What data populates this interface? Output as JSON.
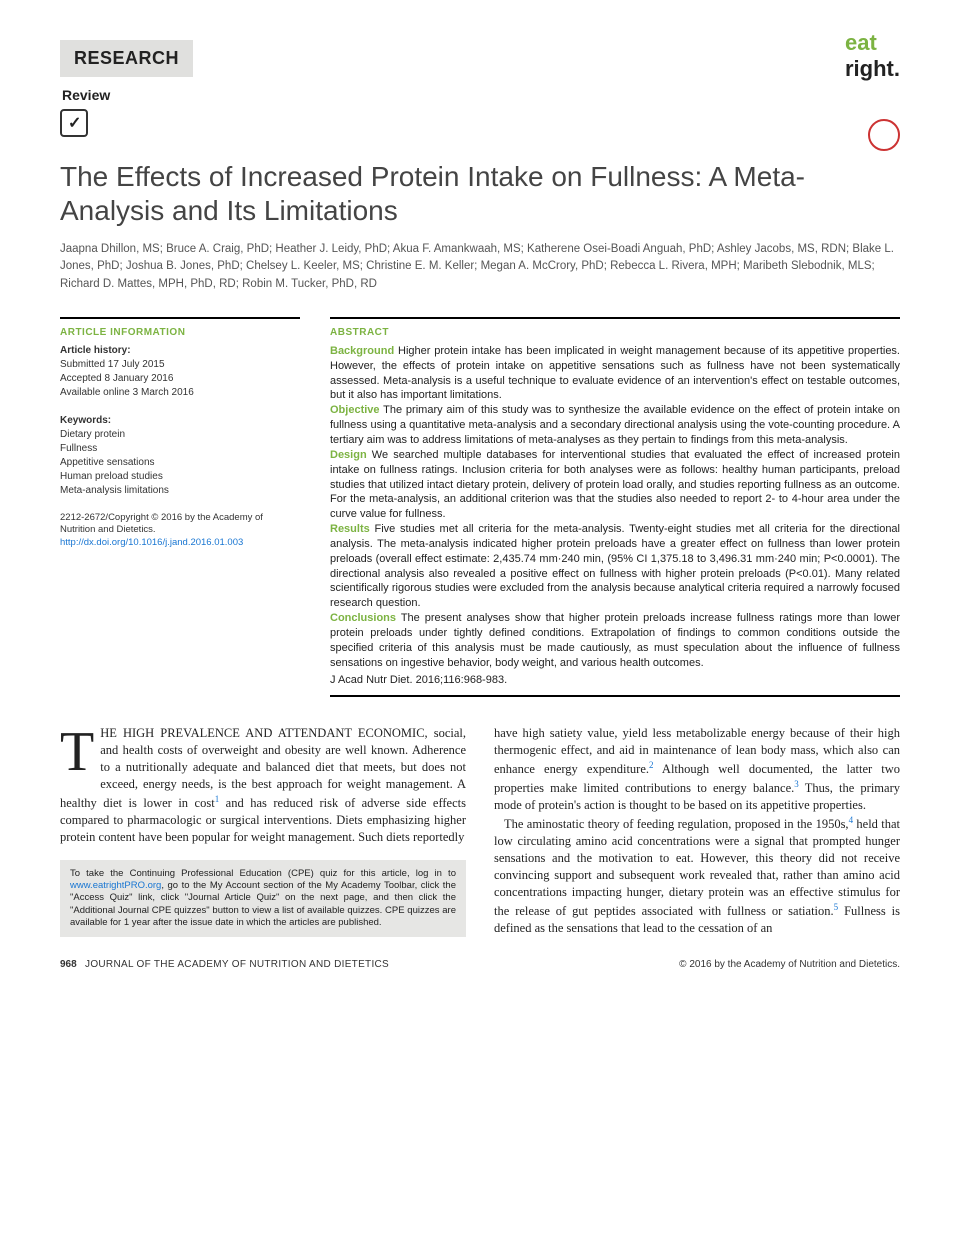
{
  "header": {
    "research": "RESEARCH",
    "review": "Review",
    "logo_eat": "eat",
    "logo_right": "right.",
    "logo_eat_color": "#7CB342",
    "logo_right_color": "#222"
  },
  "title": "The Effects of Increased Protein Intake on Fullness: A Meta-Analysis and Its Limitations",
  "authors": "Jaapna Dhillon, MS; Bruce A. Craig, PhD; Heather J. Leidy, PhD; Akua F. Amankwaah, MS; Katherene Osei-Boadi Anguah, PhD; Ashley Jacobs, MS, RDN; Blake L. Jones, PhD; Joshua B. Jones, PhD; Chelsey L. Keeler, MS; Christine E. M. Keller; Megan A. McCrory, PhD; Rebecca L. Rivera, MPH; Maribeth Slebodnik, MLS; Richard D. Mattes, MPH, PhD, RD; Robin M. Tucker, PhD, RD",
  "article_info": {
    "label": "ARTICLE INFORMATION",
    "history_label": "Article history:",
    "submitted": "Submitted 17 July 2015",
    "accepted": "Accepted 8 January 2016",
    "available": "Available online 3 March 2016",
    "keywords_label": "Keywords:",
    "keywords": [
      "Dietary protein",
      "Fullness",
      "Appetitive sensations",
      "Human preload studies",
      "Meta-analysis limitations"
    ],
    "copyright": "2212-2672/Copyright © 2016 by the Academy of Nutrition and Dietetics.",
    "doi": "http://dx.doi.org/10.1016/j.jand.2016.01.003"
  },
  "abstract": {
    "label": "ABSTRACT",
    "background_head": "Background",
    "background": " Higher protein intake has been implicated in weight management because of its appetitive properties. However, the effects of protein intake on appetitive sensations such as fullness have not been systematically assessed. Meta-analysis is a useful technique to evaluate evidence of an intervention's effect on testable outcomes, but it also has important limitations.",
    "objective_head": "Objective",
    "objective": " The primary aim of this study was to synthesize the available evidence on the effect of protein intake on fullness using a quantitative meta-analysis and a secondary directional analysis using the vote-counting procedure. A tertiary aim was to address limitations of meta-analyses as they pertain to findings from this meta-analysis.",
    "design_head": "Design",
    "design": " We searched multiple databases for interventional studies that evaluated the effect of increased protein intake on fullness ratings. Inclusion criteria for both analyses were as follows: healthy human participants, preload studies that utilized intact dietary protein, delivery of protein load orally, and studies reporting fullness as an outcome. For the meta-analysis, an additional criterion was that the studies also needed to report 2- to 4-hour area under the curve value for fullness.",
    "results_head": "Results",
    "results": " Five studies met all criteria for the meta-analysis. Twenty-eight studies met all criteria for the directional analysis. The meta-analysis indicated higher protein preloads have a greater effect on fullness than lower protein preloads (overall effect estimate: 2,435.74 mm·240 min, (95% CI 1,375.18 to 3,496.31 mm·240 min; P<0.0001). The directional analysis also revealed a positive effect on fullness with higher protein preloads (P<0.01). Many related scientifically rigorous studies were excluded from the analysis because analytical criteria required a narrowly focused research question.",
    "conclusions_head": "Conclusions",
    "conclusions": " The present analyses show that higher protein preloads increase fullness ratings more than lower protein preloads under tightly defined conditions. Extrapolation of findings to common conditions outside the specified criteria of this analysis must be made cautiously, as must speculation about the influence of fullness sensations on ingestive behavior, body weight, and various health outcomes.",
    "citation": "J Acad Nutr Diet. 2016;116:968-983."
  },
  "body": {
    "dropcap": "T",
    "p1_rest": "HE HIGH PREVALENCE AND ATTENDANT ECONOMIC, social, and health costs of overweight and obesity are well known. Adherence to a nutritionally adequate and balanced diet that meets, but does not exceed, energy needs, is the best approach for weight management. A healthy diet is lower in cost",
    "p1_sup1": "1",
    "p1_cont": " and has reduced risk of adverse side effects compared to pharmacologic or surgical interventions. Diets emphasizing higher protein content have been popular for weight management. Such diets reportedly",
    "p2a": "have high satiety value, yield less metabolizable energy because of their high thermogenic effect, and aid in maintenance of lean body mass, which also can enhance energy expenditure.",
    "p2_sup2": "2",
    "p2b": " Although well documented, the latter two properties make limited contributions to energy balance.",
    "p2_sup3": "3",
    "p2c": " Thus, the primary mode of protein's action is thought to be based on its appetitive properties.",
    "p3a": "The aminostatic theory of feeding regulation, proposed in the 1950s,",
    "p3_sup4": "4",
    "p3b": " held that low circulating amino acid concentrations were a signal that prompted hunger sensations and the motivation to eat. However, this theory did not receive convincing support and subsequent work revealed that, rather than amino acid concentrations impacting hunger, dietary protein was an effective stimulus for the release of gut peptides associated with fullness or satiation.",
    "p3_sup5": "5",
    "p3c": " Fullness is defined as the sensations that lead to the cessation of an"
  },
  "cpe": {
    "text_a": "To take the Continuing Professional Education (CPE) quiz for this article, log in to ",
    "link": "www.eatrightPRO.org",
    "text_b": ", go to the My Account section of the My Academy Toolbar, click the \"Access Quiz\" link, click \"Journal Article Quiz\" on the next page, and then click the \"Additional Journal CPE quizzes\" button to view a list of available quizzes. CPE quizzes are available for 1 year after the issue date in which the articles are published."
  },
  "footer": {
    "page": "968",
    "journal": "JOURNAL OF THE ACADEMY OF NUTRITION AND DIETETICS",
    "copyright": "© 2016 by the Academy of Nutrition and Dietetics."
  },
  "colors": {
    "accent_green": "#7CB342",
    "link_blue": "#1976d2",
    "header_bg": "#e0e0de",
    "text_dark": "#222",
    "text_gray": "#555"
  }
}
